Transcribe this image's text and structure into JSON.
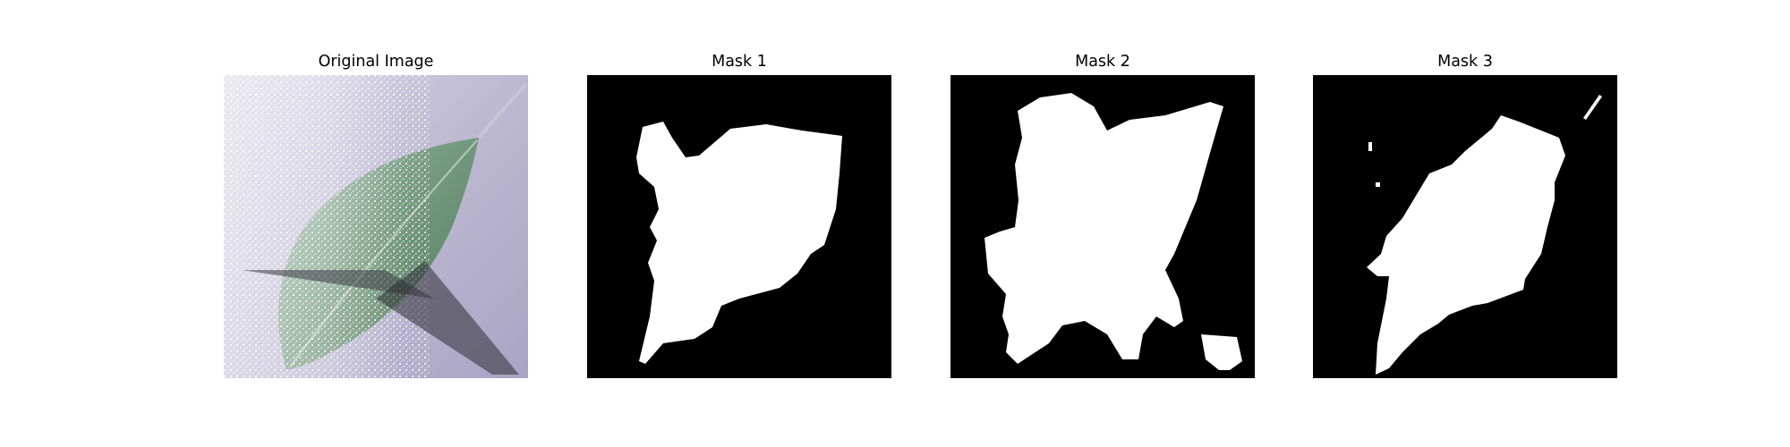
{
  "panels": [
    {
      "title": "Original Image"
    },
    {
      "title": "Mask 1"
    },
    {
      "title": "Mask 2"
    },
    {
      "title": "Mask 3"
    }
  ],
  "colors": {
    "background_white": "#ffffff",
    "mask_black": "#000000",
    "mask_white": "#ffffff",
    "leaf_green": "#7f9f88",
    "paper_lavender": "#b8b5cf"
  }
}
